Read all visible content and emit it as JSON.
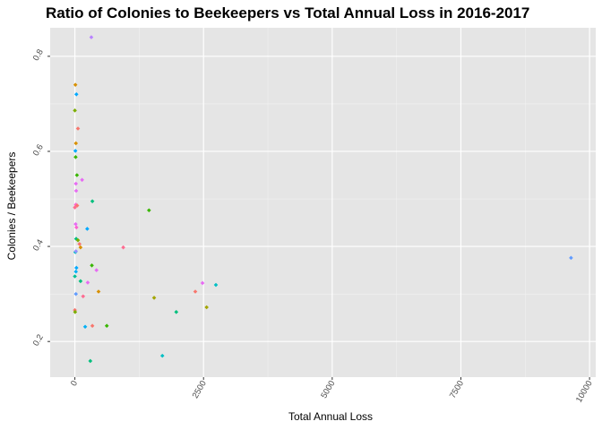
{
  "chart_data": {
    "type": "scatter",
    "title": "Ratio of Colonies to Beekeepers vs Total Annual Loss in 2016-2017",
    "xlabel": "Total Annual Loss",
    "ylabel": "Colonies  /  Beekeepers",
    "xlim": [
      -480,
      10120
    ],
    "ylim": [
      0.125,
      0.86
    ],
    "x_ticks": [
      0,
      2500,
      5000,
      7500,
      10000
    ],
    "x_tick_labels": [
      "0",
      "2500",
      "5000",
      "7500",
      "10000"
    ],
    "y_ticks": [
      0.2,
      0.4,
      0.6,
      0.8
    ],
    "y_tick_labels": [
      "0.2",
      "0.4",
      "0.6",
      "0.8"
    ],
    "background": "#e5e5e5",
    "grid": true,
    "legend": "none",
    "points": [
      {
        "x": 320,
        "y": 0.84,
        "color": "#b983ff"
      },
      {
        "x": 10,
        "y": 0.74,
        "color": "#d89000"
      },
      {
        "x": 30,
        "y": 0.72,
        "color": "#00a9ff"
      },
      {
        "x": 0,
        "y": 0.686,
        "color": "#7cae00"
      },
      {
        "x": 60,
        "y": 0.648,
        "color": "#f8766d"
      },
      {
        "x": 20,
        "y": 0.617,
        "color": "#d89000"
      },
      {
        "x": 10,
        "y": 0.601,
        "color": "#00a9ff"
      },
      {
        "x": 15,
        "y": 0.588,
        "color": "#39b600"
      },
      {
        "x": 40,
        "y": 0.55,
        "color": "#39b600"
      },
      {
        "x": 140,
        "y": 0.54,
        "color": "#e76bf3"
      },
      {
        "x": 20,
        "y": 0.532,
        "color": "#e76bf3"
      },
      {
        "x": 25,
        "y": 0.517,
        "color": "#e76bf3"
      },
      {
        "x": 340,
        "y": 0.495,
        "color": "#00bf7d"
      },
      {
        "x": 20,
        "y": 0.488,
        "color": "#fd61d1"
      },
      {
        "x": 45,
        "y": 0.486,
        "color": "#f8766d"
      },
      {
        "x": 0,
        "y": 0.482,
        "color": "#ff6c91"
      },
      {
        "x": 1440,
        "y": 0.476,
        "color": "#39b600"
      },
      {
        "x": 15,
        "y": 0.447,
        "color": "#e76bf3"
      },
      {
        "x": 240,
        "y": 0.437,
        "color": "#00a9ff"
      },
      {
        "x": 30,
        "y": 0.44,
        "color": "#fd61d1"
      },
      {
        "x": 25,
        "y": 0.416,
        "color": "#00bf7d"
      },
      {
        "x": 60,
        "y": 0.413,
        "color": "#7cae00"
      },
      {
        "x": 90,
        "y": 0.405,
        "color": "#f8766d"
      },
      {
        "x": 110,
        "y": 0.398,
        "color": "#d89000"
      },
      {
        "x": 940,
        "y": 0.398,
        "color": "#ff6c91"
      },
      {
        "x": 10,
        "y": 0.388,
        "color": "#00bfc4"
      },
      {
        "x": 20,
        "y": 0.39,
        "color": "#9590ff"
      },
      {
        "x": 9640,
        "y": 0.376,
        "color": "#619cff"
      },
      {
        "x": 330,
        "y": 0.36,
        "color": "#39b600"
      },
      {
        "x": 30,
        "y": 0.355,
        "color": "#00a9ff"
      },
      {
        "x": 420,
        "y": 0.35,
        "color": "#e76bf3"
      },
      {
        "x": 20,
        "y": 0.347,
        "color": "#00b0f6"
      },
      {
        "x": 0,
        "y": 0.337,
        "color": "#00c094"
      },
      {
        "x": 110,
        "y": 0.327,
        "color": "#00bf7d"
      },
      {
        "x": 250,
        "y": 0.324,
        "color": "#e76bf3"
      },
      {
        "x": 2480,
        "y": 0.323,
        "color": "#e76bf3"
      },
      {
        "x": 2740,
        "y": 0.319,
        "color": "#00bfc4"
      },
      {
        "x": 460,
        "y": 0.305,
        "color": "#d89000"
      },
      {
        "x": 2340,
        "y": 0.305,
        "color": "#f8766d"
      },
      {
        "x": 20,
        "y": 0.3,
        "color": "#619cff"
      },
      {
        "x": 160,
        "y": 0.295,
        "color": "#ff6c91"
      },
      {
        "x": 1540,
        "y": 0.292,
        "color": "#a3a500"
      },
      {
        "x": 2560,
        "y": 0.272,
        "color": "#a3a500"
      },
      {
        "x": 0,
        "y": 0.266,
        "color": "#f8766d"
      },
      {
        "x": 5,
        "y": 0.262,
        "color": "#7cae00"
      },
      {
        "x": 1970,
        "y": 0.262,
        "color": "#00bf7d"
      },
      {
        "x": 200,
        "y": 0.231,
        "color": "#00b0f6"
      },
      {
        "x": 340,
        "y": 0.233,
        "color": "#f8766d"
      },
      {
        "x": 620,
        "y": 0.233,
        "color": "#39b600"
      },
      {
        "x": 1700,
        "y": 0.17,
        "color": "#00bfc4"
      },
      {
        "x": 300,
        "y": 0.159,
        "color": "#00bf7d"
      }
    ]
  }
}
